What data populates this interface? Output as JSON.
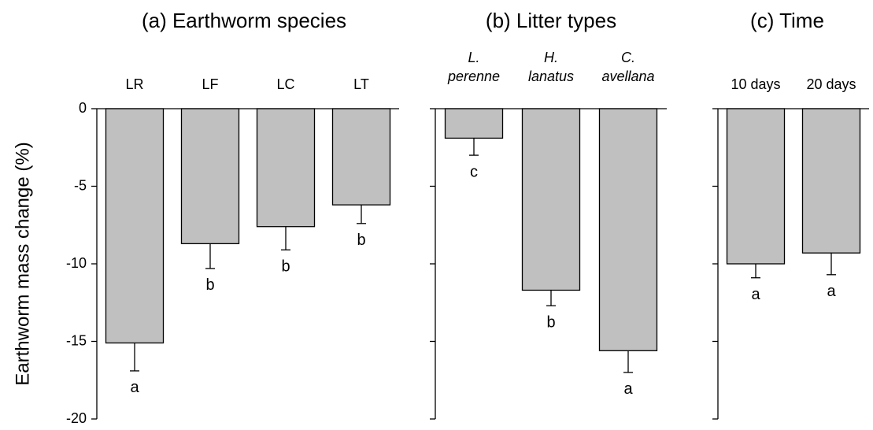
{
  "chart_data": [
    {
      "type": "bar",
      "title": "(a) Earthworm species",
      "ylabel": "Earthworm mass change (%)",
      "categories": [
        "LR",
        "LF",
        "LC",
        "LT"
      ],
      "values": [
        -15.1,
        -8.7,
        -7.6,
        -6.2
      ],
      "errors": [
        1.8,
        1.6,
        1.5,
        1.2
      ],
      "annotations": [
        "a",
        "b",
        "b",
        "b"
      ],
      "color": "#c0c0c0",
      "ylim": [
        -20,
        0
      ],
      "yticks": [
        0,
        -5,
        -10,
        -15,
        -20
      ],
      "ytick_labels": true,
      "italic_categories": false
    },
    {
      "type": "bar",
      "title": "(b) Litter types",
      "categories": [
        "L. perenne",
        "H. lanatus",
        "C. avellana"
      ],
      "values": [
        -1.9,
        -11.7,
        -15.6
      ],
      "errors": [
        1.1,
        1.0,
        1.4
      ],
      "annotations": [
        "c",
        "b",
        "a"
      ],
      "color": "#c0c0c0",
      "ylim": [
        -20,
        0
      ],
      "yticks": [
        0,
        -5,
        -10,
        -15,
        -20
      ],
      "ytick_labels": false,
      "italic_categories": true
    },
    {
      "type": "bar",
      "title": "(c) Time",
      "categories": [
        "10 days",
        "20 days"
      ],
      "values": [
        -10.0,
        -9.3
      ],
      "errors": [
        0.9,
        1.4
      ],
      "annotations": [
        "a",
        "a"
      ],
      "color": "#c0c0c0",
      "ylim": [
        -20,
        0
      ],
      "yticks": [
        0,
        -5,
        -10,
        -15,
        -20
      ],
      "ytick_labels": false,
      "italic_categories": false
    }
  ]
}
